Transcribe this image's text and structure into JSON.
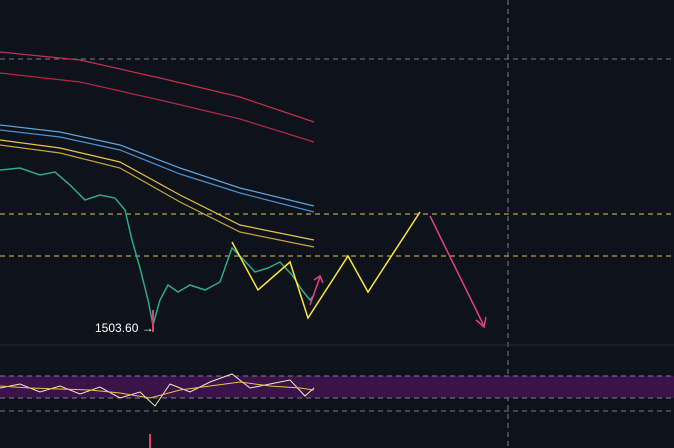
{
  "annotations": {
    "low_price": "1503.60 →"
  }
}
